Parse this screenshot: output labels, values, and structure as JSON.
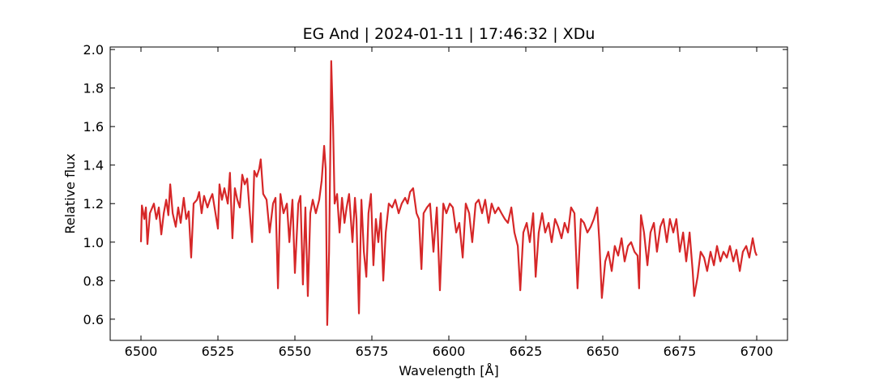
{
  "chart_data": {
    "type": "line",
    "title": "EG And | 2024-01-11 | 17:46:32 | XDu",
    "xlabel": "Wavelength [Å]",
    "ylabel": "Relative flux",
    "color": "#d62728",
    "xlim": [
      6490,
      6710
    ],
    "ylim": [
      0.49,
      2.013
    ],
    "xticks": [
      6500,
      6525,
      6550,
      6575,
      6600,
      6625,
      6650,
      6675,
      6700
    ],
    "yticks": [
      0.6,
      0.8,
      {
        "value": 1,
        "label": "1.0"
      },
      1.2,
      1.4,
      1.6,
      1.8,
      {
        "value": 2,
        "label": "2.0"
      }
    ],
    "x": [
      6500.0,
      6500.3,
      6501.1,
      6501.6,
      6502.1,
      6502.9,
      6504.2,
      6505.0,
      6505.8,
      6506.6,
      6507.4,
      6508.2,
      6508.9,
      6509.5,
      6510.3,
      6511.3,
      6512.1,
      6512.9,
      6513.9,
      6514.7,
      6515.5,
      6516.3,
      6517.1,
      6518.2,
      6518.9,
      6519.7,
      6520.5,
      6521.6,
      6522.4,
      6523.2,
      6524.2,
      6525.0,
      6525.5,
      6526.3,
      6527.1,
      6528.2,
      6528.9,
      6529.7,
      6530.5,
      6531.3,
      6532.1,
      6532.9,
      6533.7,
      6534.5,
      6535.3,
      6536.1,
      6536.8,
      6537.6,
      6538.4,
      6538.9,
      6539.7,
      6540.8,
      6541.8,
      6542.9,
      6543.7,
      6544.5,
      6545.3,
      6546.3,
      6547.4,
      6548.2,
      6549.2,
      6550.0,
      6551.1,
      6551.8,
      6552.6,
      6553.4,
      6554.2,
      6555.0,
      6555.8,
      6556.8,
      6557.9,
      6558.7,
      6559.5,
      6560.0,
      6560.5,
      6561.1,
      6561.6,
      6561.8,
      6562.4,
      6562.9,
      6563.7,
      6564.5,
      6565.3,
      6566.1,
      6566.8,
      6567.6,
      6568.7,
      6569.5,
      6570.0,
      6570.8,
      6571.6,
      6572.4,
      6573.2,
      6573.9,
      6574.7,
      6575.5,
      6576.3,
      6577.1,
      6577.9,
      6578.7,
      6579.5,
      6580.5,
      6581.6,
      6582.6,
      6583.7,
      6584.7,
      6585.8,
      6586.6,
      6587.4,
      6588.4,
      6589.5,
      6590.3,
      6591.1,
      6591.8,
      6592.9,
      6593.9,
      6595.0,
      6596.1,
      6597.1,
      6598.2,
      6599.2,
      6600.3,
      6601.3,
      6602.4,
      6603.4,
      6604.5,
      6605.5,
      6606.6,
      6607.6,
      6608.7,
      6609.7,
      6610.8,
      6611.8,
      6612.9,
      6613.9,
      6615.0,
      6616.1,
      6617.1,
      6618.2,
      6619.2,
      6620.3,
      6621.3,
      6622.4,
      6623.2,
      6624.2,
      6625.3,
      6626.3,
      6627.4,
      6628.2,
      6629.2,
      6630.3,
      6631.3,
      6632.4,
      6633.4,
      6634.5,
      6635.5,
      6636.6,
      6637.6,
      6638.7,
      6639.7,
      6640.8,
      6641.8,
      6642.9,
      6643.9,
      6645.0,
      6646.1,
      6647.1,
      6648.2,
      6648.9,
      6649.7,
      6650.8,
      6651.8,
      6652.9,
      6653.9,
      6655.0,
      6656.1,
      6657.1,
      6658.2,
      6659.2,
      6660.3,
      6661.3,
      6661.8,
      6662.4,
      6663.4,
      6664.5,
      6665.5,
      6666.6,
      6667.6,
      6668.7,
      6669.7,
      6670.8,
      6671.8,
      6672.9,
      6673.9,
      6675.0,
      6676.1,
      6677.1,
      6678.2,
      6679.2,
      6679.7,
      6680.8,
      6681.8,
      6682.9,
      6683.9,
      6685.0,
      6686.1,
      6687.1,
      6688.2,
      6689.2,
      6690.3,
      6691.3,
      6692.4,
      6693.4,
      6694.5,
      6695.5,
      6696.6,
      6697.6,
      6698.7,
      6699.5,
      6700.0
    ],
    "values": [
      1.0,
      1.19,
      1.12,
      1.18,
      0.99,
      1.15,
      1.2,
      1.12,
      1.18,
      1.04,
      1.15,
      1.22,
      1.14,
      1.3,
      1.15,
      1.08,
      1.18,
      1.1,
      1.23,
      1.12,
      1.16,
      0.92,
      1.2,
      1.22,
      1.26,
      1.15,
      1.24,
      1.18,
      1.22,
      1.25,
      1.15,
      1.07,
      1.3,
      1.22,
      1.28,
      1.2,
      1.36,
      1.02,
      1.28,
      1.22,
      1.18,
      1.35,
      1.3,
      1.33,
      1.16,
      1.0,
      1.37,
      1.34,
      1.38,
      1.43,
      1.25,
      1.22,
      1.05,
      1.2,
      1.23,
      0.76,
      1.25,
      1.15,
      1.2,
      1.0,
      1.22,
      0.84,
      1.2,
      1.24,
      0.78,
      1.18,
      0.72,
      1.15,
      1.22,
      1.15,
      1.22,
      1.32,
      1.5,
      1.38,
      0.57,
      0.95,
      1.6,
      1.94,
      1.6,
      1.2,
      1.25,
      1.05,
      1.23,
      1.1,
      1.18,
      1.25,
      1.0,
      1.23,
      1.12,
      0.63,
      1.22,
      0.95,
      0.82,
      1.15,
      1.25,
      0.88,
      1.12,
      1.0,
      1.15,
      0.8,
      1.05,
      1.2,
      1.18,
      1.22,
      1.15,
      1.2,
      1.23,
      1.2,
      1.26,
      1.28,
      1.15,
      1.12,
      0.86,
      1.15,
      1.18,
      1.2,
      0.95,
      1.18,
      0.75,
      1.2,
      1.15,
      1.2,
      1.18,
      1.05,
      1.1,
      0.92,
      1.2,
      1.15,
      1.0,
      1.2,
      1.22,
      1.15,
      1.22,
      1.1,
      1.2,
      1.15,
      1.18,
      1.15,
      1.12,
      1.1,
      1.18,
      1.05,
      0.98,
      0.75,
      1.05,
      1.1,
      1.0,
      1.15,
      0.82,
      1.05,
      1.15,
      1.05,
      1.1,
      1.0,
      1.12,
      1.08,
      1.02,
      1.1,
      1.05,
      1.18,
      1.15,
      0.76,
      1.12,
      1.1,
      1.05,
      1.08,
      1.12,
      1.18,
      1.0,
      0.71,
      0.9,
      0.95,
      0.85,
      0.98,
      0.93,
      1.02,
      0.9,
      0.98,
      1.0,
      0.95,
      0.93,
      0.76,
      1.14,
      1.05,
      0.88,
      1.05,
      1.1,
      0.95,
      1.08,
      1.12,
      1.0,
      1.12,
      1.05,
      1.12,
      0.95,
      1.05,
      0.9,
      1.05,
      0.85,
      0.72,
      0.82,
      0.95,
      0.92,
      0.85,
      0.95,
      0.88,
      0.98,
      0.9,
      0.95,
      0.92,
      0.98,
      0.9,
      0.96,
      0.85,
      0.95,
      0.98,
      0.92,
      1.02,
      0.95,
      0.93
    ]
  }
}
